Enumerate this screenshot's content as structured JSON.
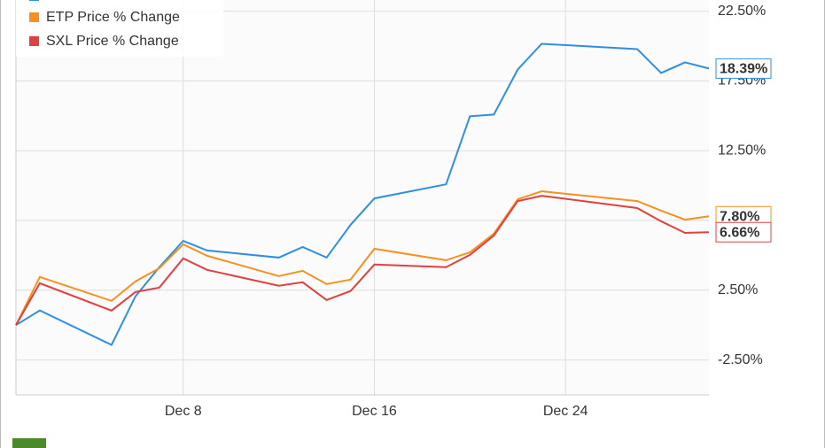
{
  "chart_data": {
    "type": "line",
    "x": [
      "Dec 1",
      "Dec 2",
      "Dec 5",
      "Dec 6",
      "Dec 7",
      "Dec 8",
      "Dec 9",
      "Dec 12",
      "Dec 13",
      "Dec 14",
      "Dec 15",
      "Dec 16",
      "Dec 19",
      "Dec 20",
      "Dec 21",
      "Dec 22",
      "Dec 23",
      "Dec 27",
      "Dec 28",
      "Dec 29",
      "Dec 30"
    ],
    "xlim": [
      "Dec 1",
      "Dec 30"
    ],
    "xticks": [
      "Dec 8",
      "Dec 16",
      "Dec 24"
    ],
    "ylim": [
      -5,
      23.3
    ],
    "yticks": [
      {
        "value": -2.5,
        "label": "-2.50%"
      },
      {
        "value": 2.5,
        "label": "2.50%"
      },
      {
        "value": 7.5,
        "label": "7.50%"
      },
      {
        "value": 12.5,
        "label": "12.50%"
      },
      {
        "value": 17.5,
        "label": "17.50%"
      },
      {
        "value": 22.5,
        "label": "22.50%"
      }
    ],
    "grid": true,
    "legend": "top-left",
    "series": [
      {
        "color": "#2e8fe0",
        "values": [
          0,
          1.05,
          -1.42,
          2.06,
          4.15,
          6.04,
          5.35,
          4.84,
          5.6,
          4.84,
          7.18,
          9.08,
          10.09,
          14.97,
          15.09,
          18.32,
          20.16,
          19.78,
          18.07,
          18.83,
          18.39
        ],
        "value_labels": [
          null,
          null,
          null,
          null,
          null,
          null,
          null,
          null,
          null,
          null,
          null,
          null,
          null,
          null,
          null,
          null,
          null,
          null,
          null,
          null,
          "18.39%"
        ]
      },
      {
        "name": "ETP Price % Change",
        "color": "#f7901e",
        "values": [
          0,
          3.45,
          1.74,
          3.13,
          4.08,
          5.79,
          4.97,
          3.51,
          3.89,
          2.94,
          3.26,
          5.47,
          4.65,
          5.22,
          6.55,
          9.02,
          9.59,
          8.89,
          8.2,
          7.56,
          7.8
        ],
        "value_labels": [
          null,
          null,
          null,
          null,
          null,
          null,
          null,
          null,
          null,
          null,
          null,
          null,
          null,
          null,
          null,
          null,
          null,
          null,
          null,
          null,
          "7.80%"
        ]
      },
      {
        "name": "SXL Price % Change",
        "color": "#e0403f",
        "values": [
          0,
          3.0,
          1.04,
          2.37,
          2.69,
          4.78,
          3.96,
          2.82,
          3.07,
          1.8,
          2.44,
          4.34,
          4.15,
          5.03,
          6.42,
          8.89,
          9.27,
          8.39,
          7.44,
          6.61,
          6.66
        ],
        "value_labels": [
          null,
          null,
          null,
          null,
          null,
          null,
          null,
          null,
          null,
          null,
          null,
          null,
          null,
          null,
          null,
          null,
          null,
          null,
          null,
          null,
          "6.66%"
        ]
      }
    ]
  }
}
